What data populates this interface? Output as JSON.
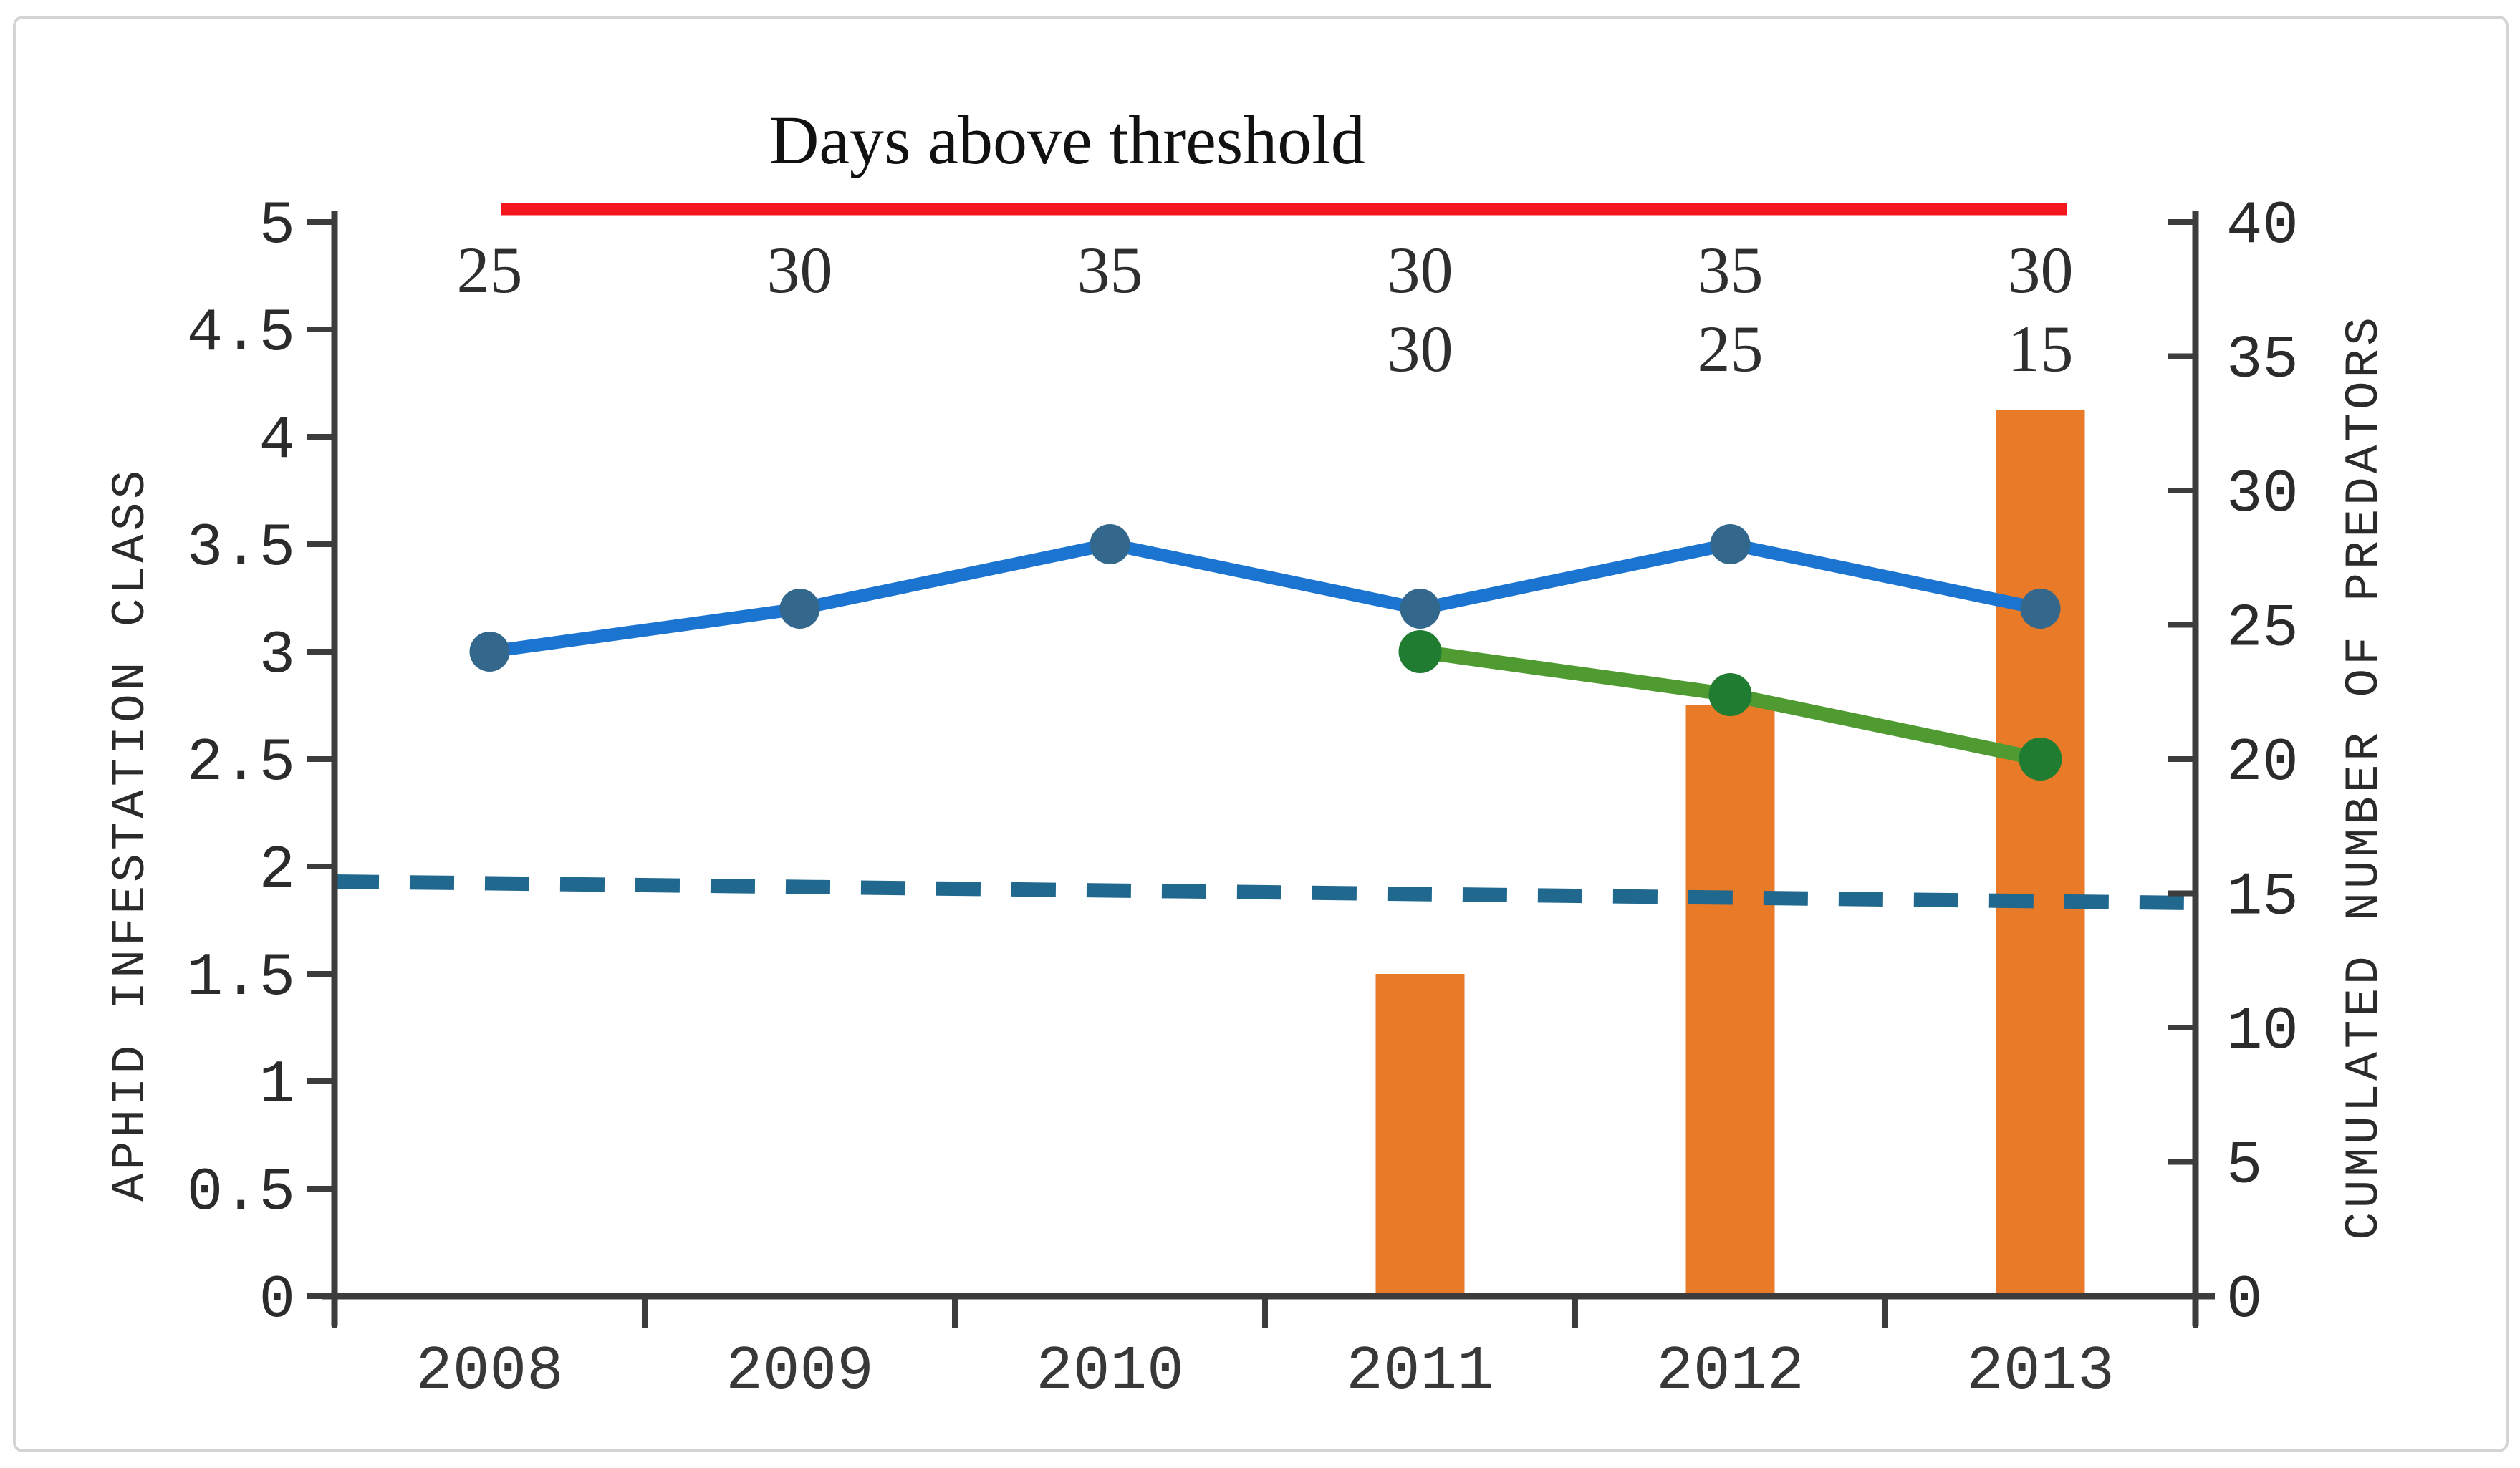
{
  "chart_data": {
    "type": "combo",
    "title": "Days above threshold",
    "categories": [
      "2008",
      "2009",
      "2010",
      "2011",
      "2012",
      "2013"
    ],
    "series": [
      {
        "name": "aphid-infestation-line-blue",
        "type": "line",
        "axis": "left",
        "line_color": "#1b75d0",
        "marker_color": "#33688c",
        "values": [
          3.0,
          3.2,
          3.5,
          3.2,
          3.5,
          3.2
        ]
      },
      {
        "name": "aphid-infestation-line-green",
        "type": "line",
        "axis": "left",
        "line_color": "#4f9b31",
        "marker_color": "#1f7c31",
        "values": [
          null,
          null,
          null,
          3.0,
          2.8,
          2.5
        ]
      },
      {
        "name": "cumulated-predators-bars",
        "type": "bar",
        "axis": "right",
        "color": "#e87a28",
        "values": [
          null,
          null,
          null,
          12,
          22,
          33
        ]
      }
    ],
    "day_label_rows": [
      {
        "color": "#2766c0",
        "values": [
          "25",
          "30",
          "35",
          "30",
          "35",
          "30"
        ]
      },
      {
        "color": "#1f7a24",
        "values": [
          null,
          null,
          null,
          "30",
          "25",
          "15"
        ]
      }
    ],
    "threshold_line": {
      "color": "#21688f",
      "style": "dashed",
      "value_left": 1.93,
      "value_right": 1.83
    },
    "title_underline_color": "#f3161c",
    "left_axis": {
      "label": "APHID INFESTATION CLASS",
      "min": 0,
      "max": 5,
      "tick_step": 0.5,
      "tick_labels": [
        "0",
        "0.5",
        "1",
        "1.5",
        "2",
        "2.5",
        "3",
        "3.5",
        "4",
        "4.5",
        "5"
      ]
    },
    "right_axis": {
      "label": "CUMULATED NUMBER OF PREDATORS",
      "min": 0,
      "max": 40,
      "tick_step": 5,
      "tick_labels": [
        "0",
        "5",
        "10",
        "15",
        "20",
        "25",
        "30",
        "35",
        "40"
      ]
    },
    "x_axis": {
      "tick_labels": [
        "2008",
        "2009",
        "2010",
        "2011",
        "2012",
        "2013"
      ]
    }
  }
}
